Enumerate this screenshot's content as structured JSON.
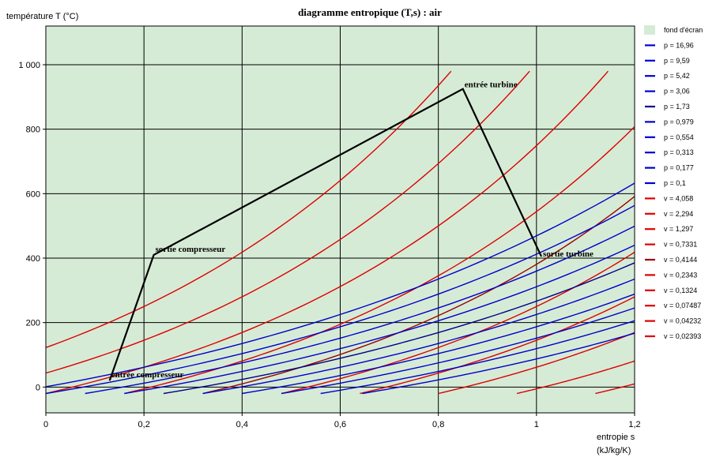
{
  "chart_data": {
    "type": "line",
    "title": "diagramme entropique (T,s) : air",
    "ylabel": "température  T  (°C)",
    "xlabel_line1": "entropie  s",
    "xlabel_line2": "(kJ/kg/K)",
    "xlim": [
      0,
      1.2
    ],
    "ylim": [
      -80,
      1120
    ],
    "xticks": [
      0,
      0.2,
      0.4,
      0.6,
      0.8,
      1.0,
      1.2
    ],
    "xtick_labels": [
      "0",
      "0,2",
      "0,4",
      "0,6",
      "0,8",
      "1",
      "1,2"
    ],
    "yticks": [
      0,
      200,
      400,
      600,
      800,
      1000
    ],
    "ytick_labels": [
      "0",
      "200",
      "400",
      "600",
      "800",
      "1 000"
    ],
    "grid": true,
    "plot_background": "#d6ebd6",
    "legend_position": "right",
    "legend": [
      {
        "label": "fond d'écran",
        "kind": "swatch",
        "color": "#d6ebd6"
      },
      {
        "label": "p = 16,96",
        "color": "#0000cc"
      },
      {
        "label": "p = 9,59",
        "color": "#0000cc"
      },
      {
        "label": "p = 5,42",
        "color": "#0000cc"
      },
      {
        "label": "p = 3,06",
        "color": "#0000cc"
      },
      {
        "label": "p = 1,73",
        "color": "#00008b"
      },
      {
        "label": "p = 0,979",
        "color": "#0000cc"
      },
      {
        "label": "p = 0,554",
        "color": "#0000cc"
      },
      {
        "label": "p = 0,313",
        "color": "#0000cc"
      },
      {
        "label": "p = 0,177",
        "color": "#0000cc"
      },
      {
        "label": "p = 0,1",
        "color": "#0000cc"
      },
      {
        "label": "v = 4,058",
        "color": "#dd0000"
      },
      {
        "label": "v = 2,294",
        "color": "#dd0000"
      },
      {
        "label": "v = 1,297",
        "color": "#dd0000"
      },
      {
        "label": "v = 0,7331",
        "color": "#dd0000"
      },
      {
        "label": "v = 0,4144",
        "color": "#990000"
      },
      {
        "label": "v = 0,2343",
        "color": "#dd0000"
      },
      {
        "label": "v = 0,1324",
        "color": "#dd0000"
      },
      {
        "label": "v = 0,07487",
        "color": "#dd0000"
      },
      {
        "label": "v = 0,04232",
        "color": "#dd0000"
      },
      {
        "label": "v = 0,02393",
        "color": "#dd0000"
      }
    ],
    "isobars": [
      {
        "name": "p = 16,96",
        "color": "#0000cc",
        "s0": -0.08
      },
      {
        "name": "p = 9,59",
        "color": "#0000cc",
        "s0": 0.0
      },
      {
        "name": "p = 5,42",
        "color": "#0000cc",
        "s0": 0.08
      },
      {
        "name": "p = 3,06",
        "color": "#0000cc",
        "s0": 0.16
      },
      {
        "name": "p = 1,73",
        "color": "#00008b",
        "s0": 0.24
      },
      {
        "name": "p = 0,979",
        "color": "#0000cc",
        "s0": 0.32
      },
      {
        "name": "p = 0,554",
        "color": "#0000cc",
        "s0": 0.4
      },
      {
        "name": "p = 0,313",
        "color": "#0000cc",
        "s0": 0.48
      },
      {
        "name": "p = 0,177",
        "color": "#0000cc",
        "s0": 0.56
      },
      {
        "name": "p = 0,1",
        "color": "#0000cc",
        "s0": 0.645
      }
    ],
    "isochores": [
      {
        "name": "v = 4,058",
        "color": "#dd0000",
        "s0": -0.32
      },
      {
        "name": "v = 2,294",
        "color": "#dd0000",
        "s0": -0.16
      },
      {
        "name": "v = 1,297",
        "color": "#dd0000",
        "s0": 0.0
      },
      {
        "name": "v = 0,7331",
        "color": "#dd0000",
        "s0": 0.16
      },
      {
        "name": "v = 0,4144",
        "color": "#990000",
        "s0": 0.32
      },
      {
        "name": "v = 0,2343",
        "color": "#dd0000",
        "s0": 0.48
      },
      {
        "name": "v = 0,1324",
        "color": "#dd0000",
        "s0": 0.64
      },
      {
        "name": "v = 0,07487",
        "color": "#dd0000",
        "s0": 0.8
      },
      {
        "name": "v = 0,04232",
        "color": "#dd0000",
        "s0": 0.96
      },
      {
        "name": "v = 0,02393",
        "color": "#dd0000",
        "s0": 1.12
      }
    ],
    "cycle": {
      "color": "#000000",
      "points": [
        {
          "label": "entrée compresseur",
          "s": 0.13,
          "T": 20
        },
        {
          "label": "sortie compresseur",
          "s": 0.22,
          "T": 410
        },
        {
          "label": "entrée turbine",
          "s": 0.85,
          "T": 925
        },
        {
          "label": "sortie turbine",
          "s": 1.01,
          "T": 405
        }
      ]
    }
  }
}
